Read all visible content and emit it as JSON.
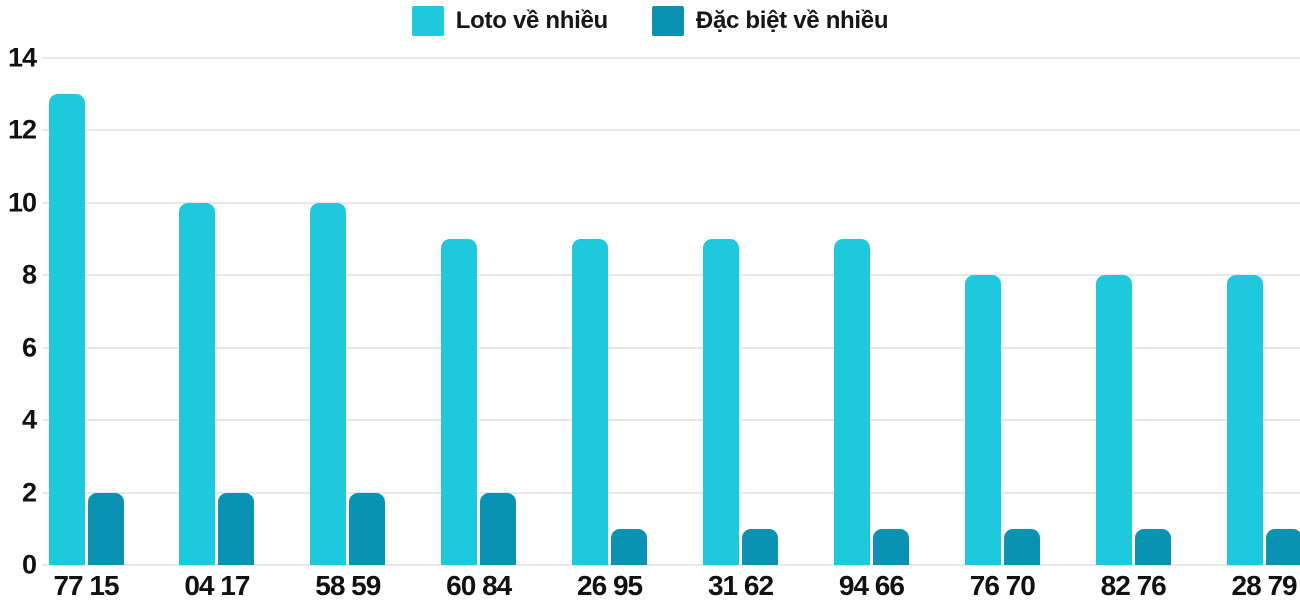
{
  "chart_data": {
    "type": "bar",
    "title": "",
    "xlabel": "",
    "ylabel": "",
    "categories": [
      "77 15",
      "04 17",
      "58 59",
      "60 84",
      "26 95",
      "31 62",
      "94 66",
      "76 70",
      "82 76",
      "28 79"
    ],
    "series": [
      {
        "name": "Loto về nhiều",
        "color": "#1EC9DD",
        "values": [
          13,
          10,
          10,
          9,
          9,
          9,
          9,
          8,
          8,
          8
        ]
      },
      {
        "name": "Đặc biệt về nhiều",
        "color": "#0992B4",
        "values": [
          2,
          2,
          2,
          2,
          1,
          1,
          1,
          1,
          1,
          1
        ]
      }
    ],
    "ylim": [
      0,
      14
    ],
    "yticks": [
      0,
      2,
      4,
      6,
      8,
      10,
      12,
      14
    ],
    "grid": true,
    "legend_position": "top-center"
  },
  "colors": {
    "grid": "#E8E8E8",
    "text": "#111111",
    "background": "#FFFFFF"
  }
}
